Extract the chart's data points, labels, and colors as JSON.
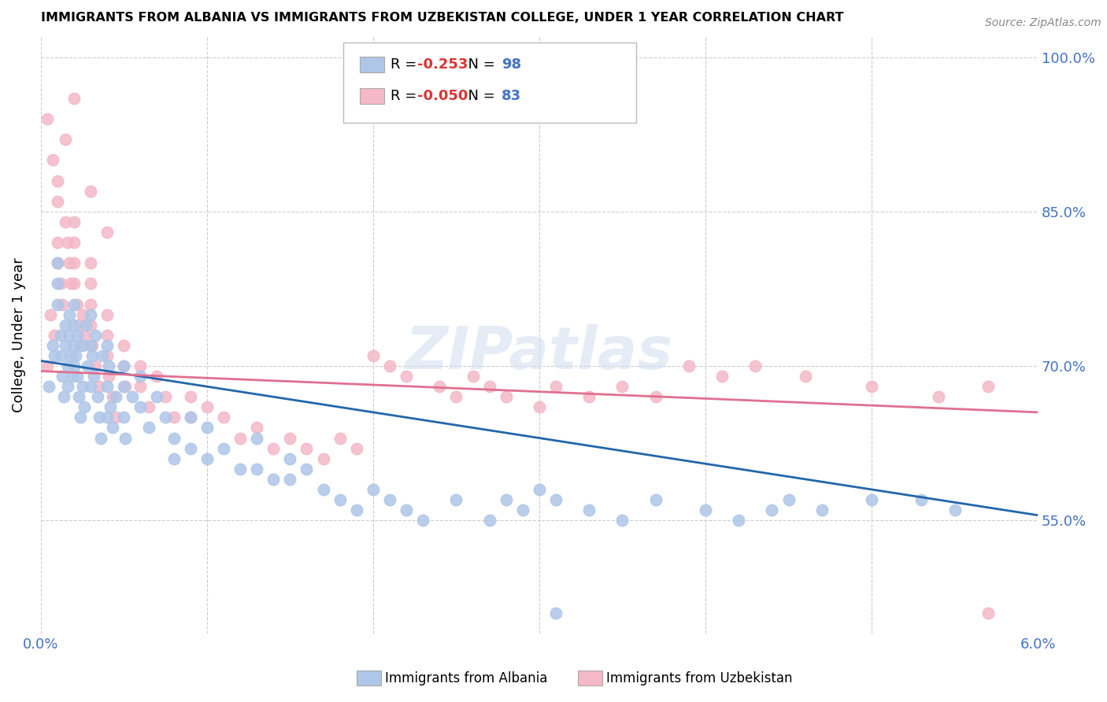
{
  "title": "IMMIGRANTS FROM ALBANIA VS IMMIGRANTS FROM UZBEKISTAN COLLEGE, UNDER 1 YEAR CORRELATION CHART",
  "source": "Source: ZipAtlas.com",
  "ylabel": "College, Under 1 year",
  "xlim": [
    0.0,
    0.06
  ],
  "ylim": [
    0.44,
    1.02
  ],
  "yticks": [
    0.55,
    0.7,
    0.85,
    1.0
  ],
  "ytick_labels": [
    "55.0%",
    "70.0%",
    "85.0%",
    "100.0%"
  ],
  "xticks": [
    0.0,
    0.01,
    0.02,
    0.03,
    0.04,
    0.05,
    0.06
  ],
  "albania_color": "#aec6e8",
  "uzbekistan_color": "#f4b8c8",
  "albania_line_color": "#2266aa",
  "uzbekistan_line_color": "#e07090",
  "R_albania": -0.253,
  "N_albania": 98,
  "R_uzbekistan": -0.05,
  "N_uzbekistan": 83,
  "watermark": "ZIPatlas",
  "background_color": "#ffffff",
  "grid_color": "#cccccc",
  "axis_label_color": "#4472c4",
  "albania_scatter_x": [
    0.0005,
    0.0007,
    0.0008,
    0.001,
    0.001,
    0.001,
    0.0012,
    0.0012,
    0.0013,
    0.0014,
    0.0015,
    0.0015,
    0.0016,
    0.0016,
    0.0017,
    0.0017,
    0.0018,
    0.0019,
    0.002,
    0.002,
    0.002,
    0.002,
    0.0021,
    0.0022,
    0.0022,
    0.0023,
    0.0024,
    0.0025,
    0.0025,
    0.0026,
    0.0027,
    0.0028,
    0.003,
    0.003,
    0.003,
    0.0031,
    0.0032,
    0.0033,
    0.0034,
    0.0035,
    0.0036,
    0.0037,
    0.004,
    0.004,
    0.004,
    0.0041,
    0.0042,
    0.0043,
    0.0045,
    0.005,
    0.005,
    0.005,
    0.0051,
    0.0055,
    0.006,
    0.006,
    0.0065,
    0.007,
    0.0075,
    0.008,
    0.008,
    0.009,
    0.009,
    0.01,
    0.01,
    0.011,
    0.012,
    0.013,
    0.013,
    0.014,
    0.015,
    0.015,
    0.016,
    0.017,
    0.018,
    0.019,
    0.02,
    0.021,
    0.022,
    0.023,
    0.025,
    0.027,
    0.028,
    0.029,
    0.03,
    0.031,
    0.033,
    0.035,
    0.037,
    0.04,
    0.042,
    0.045,
    0.047,
    0.05,
    0.053,
    0.055,
    0.031,
    0.044
  ],
  "albania_scatter_y": [
    0.68,
    0.72,
    0.71,
    0.76,
    0.78,
    0.8,
    0.73,
    0.71,
    0.69,
    0.67,
    0.74,
    0.72,
    0.7,
    0.68,
    0.75,
    0.73,
    0.71,
    0.69,
    0.76,
    0.74,
    0.72,
    0.7,
    0.71,
    0.73,
    0.69,
    0.67,
    0.65,
    0.72,
    0.68,
    0.66,
    0.74,
    0.7,
    0.75,
    0.72,
    0.68,
    0.71,
    0.69,
    0.73,
    0.67,
    0.65,
    0.63,
    0.71,
    0.72,
    0.68,
    0.65,
    0.7,
    0.66,
    0.64,
    0.67,
    0.7,
    0.68,
    0.65,
    0.63,
    0.67,
    0.69,
    0.66,
    0.64,
    0.67,
    0.65,
    0.63,
    0.61,
    0.65,
    0.62,
    0.64,
    0.61,
    0.62,
    0.6,
    0.63,
    0.6,
    0.59,
    0.61,
    0.59,
    0.6,
    0.58,
    0.57,
    0.56,
    0.58,
    0.57,
    0.56,
    0.55,
    0.57,
    0.55,
    0.57,
    0.56,
    0.58,
    0.57,
    0.56,
    0.55,
    0.57,
    0.56,
    0.55,
    0.57,
    0.56,
    0.57,
    0.57,
    0.56,
    0.46,
    0.56
  ],
  "uzbekistan_scatter_x": [
    0.0004,
    0.0006,
    0.0008,
    0.001,
    0.001,
    0.001,
    0.0012,
    0.0013,
    0.0015,
    0.0016,
    0.0017,
    0.0018,
    0.002,
    0.002,
    0.002,
    0.002,
    0.0022,
    0.0023,
    0.0024,
    0.0025,
    0.0026,
    0.003,
    0.003,
    0.003,
    0.003,
    0.0031,
    0.0033,
    0.0035,
    0.004,
    0.004,
    0.004,
    0.0041,
    0.0043,
    0.0045,
    0.005,
    0.005,
    0.0051,
    0.006,
    0.006,
    0.0065,
    0.007,
    0.0075,
    0.008,
    0.009,
    0.009,
    0.01,
    0.011,
    0.012,
    0.013,
    0.014,
    0.015,
    0.016,
    0.017,
    0.018,
    0.019,
    0.02,
    0.021,
    0.022,
    0.024,
    0.025,
    0.026,
    0.027,
    0.028,
    0.03,
    0.031,
    0.033,
    0.035,
    0.037,
    0.039,
    0.041,
    0.043,
    0.046,
    0.05,
    0.054,
    0.057,
    0.0004,
    0.0007,
    0.001,
    0.0015,
    0.002,
    0.003,
    0.004,
    0.057
  ],
  "uzbekistan_scatter_y": [
    0.7,
    0.75,
    0.73,
    0.8,
    0.82,
    0.86,
    0.78,
    0.76,
    0.84,
    0.82,
    0.8,
    0.78,
    0.84,
    0.82,
    0.8,
    0.78,
    0.76,
    0.74,
    0.72,
    0.75,
    0.73,
    0.8,
    0.78,
    0.76,
    0.74,
    0.72,
    0.7,
    0.68,
    0.75,
    0.73,
    0.71,
    0.69,
    0.67,
    0.65,
    0.72,
    0.7,
    0.68,
    0.7,
    0.68,
    0.66,
    0.69,
    0.67,
    0.65,
    0.67,
    0.65,
    0.66,
    0.65,
    0.63,
    0.64,
    0.62,
    0.63,
    0.62,
    0.61,
    0.63,
    0.62,
    0.71,
    0.7,
    0.69,
    0.68,
    0.67,
    0.69,
    0.68,
    0.67,
    0.66,
    0.68,
    0.67,
    0.68,
    0.67,
    0.7,
    0.69,
    0.7,
    0.69,
    0.68,
    0.67,
    0.46,
    0.94,
    0.9,
    0.88,
    0.92,
    0.96,
    0.87,
    0.83,
    0.68
  ]
}
